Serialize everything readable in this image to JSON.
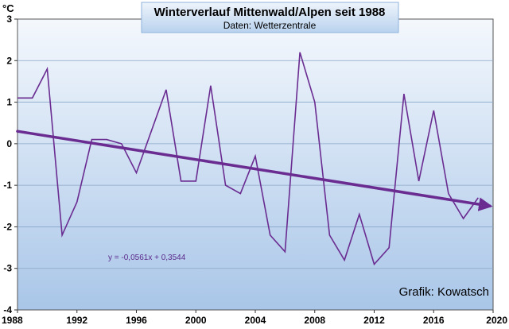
{
  "chart_data": {
    "type": "line",
    "title": "Winterverlauf Mittenwald/Alpen seit 1988",
    "subtitle": "Daten: Wetterzentrale",
    "ylabel": "°C",
    "xlim": [
      1988,
      2020
    ],
    "ylim": [
      -4,
      3
    ],
    "x_ticks": [
      1988,
      1992,
      1996,
      2000,
      2004,
      2008,
      2012,
      2016,
      2020
    ],
    "y_ticks": [
      3,
      2,
      1,
      0,
      -1,
      -2,
      -3,
      -4
    ],
    "grid": true,
    "series": [
      {
        "x": [
          1988,
          1989,
          1990,
          1991,
          1992,
          1993,
          1994,
          1995,
          1996,
          1997,
          1998,
          1999,
          2000,
          2001,
          2002,
          2003,
          2004,
          2005,
          2006,
          2007,
          2008,
          2009,
          2010,
          2011,
          2012,
          2013,
          2014,
          2015,
          2016,
          2017,
          2018,
          2019
        ],
        "values": [
          1.1,
          1.1,
          1.8,
          -2.2,
          -1.4,
          0.1,
          0.1,
          0.0,
          -0.7,
          0.3,
          1.3,
          -0.9,
          -0.9,
          1.4,
          -1.0,
          -1.2,
          -0.3,
          -2.2,
          -2.6,
          2.2,
          1.0,
          -2.2,
          -2.8,
          -1.7,
          -2.9,
          -2.5,
          1.2,
          -0.9,
          0.8,
          -1.2,
          -1.8,
          -1.3
        ],
        "color": "#6a2c91"
      }
    ],
    "trendline": {
      "equation": "y = -0,0561x + 0,3544",
      "x": [
        1988,
        2020
      ],
      "values": [
        0.3,
        -1.5
      ],
      "color": "#6a2c91"
    },
    "annotation": "Grafik: Kowatsch"
  }
}
